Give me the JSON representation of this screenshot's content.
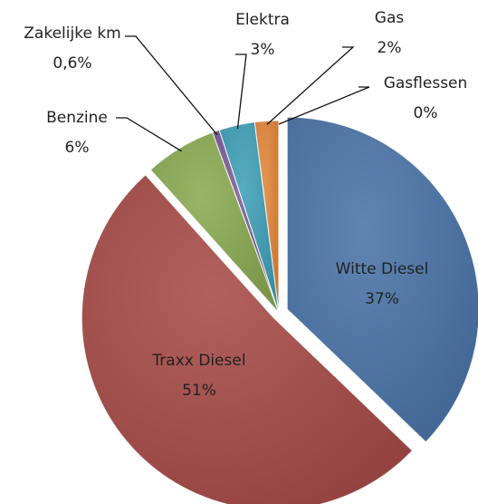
{
  "chart_data": {
    "type": "pie",
    "categories": [
      "Witte Diesel",
      "Traxx Diesel",
      "Benzine",
      "Zakelijke km",
      "Elektra",
      "Gas",
      "Gasflessen"
    ],
    "values": [
      37,
      51,
      6,
      0.6,
      3,
      2,
      0
    ],
    "value_labels": [
      "37%",
      "51%",
      "6%",
      "0,6%",
      "3%",
      "2%",
      "0%"
    ],
    "colors": [
      "#4a74a9",
      "#a84b48",
      "#8aab52",
      "#7a5d99",
      "#3fa0b8",
      "#e3873a",
      "#9fb8d8"
    ]
  }
}
